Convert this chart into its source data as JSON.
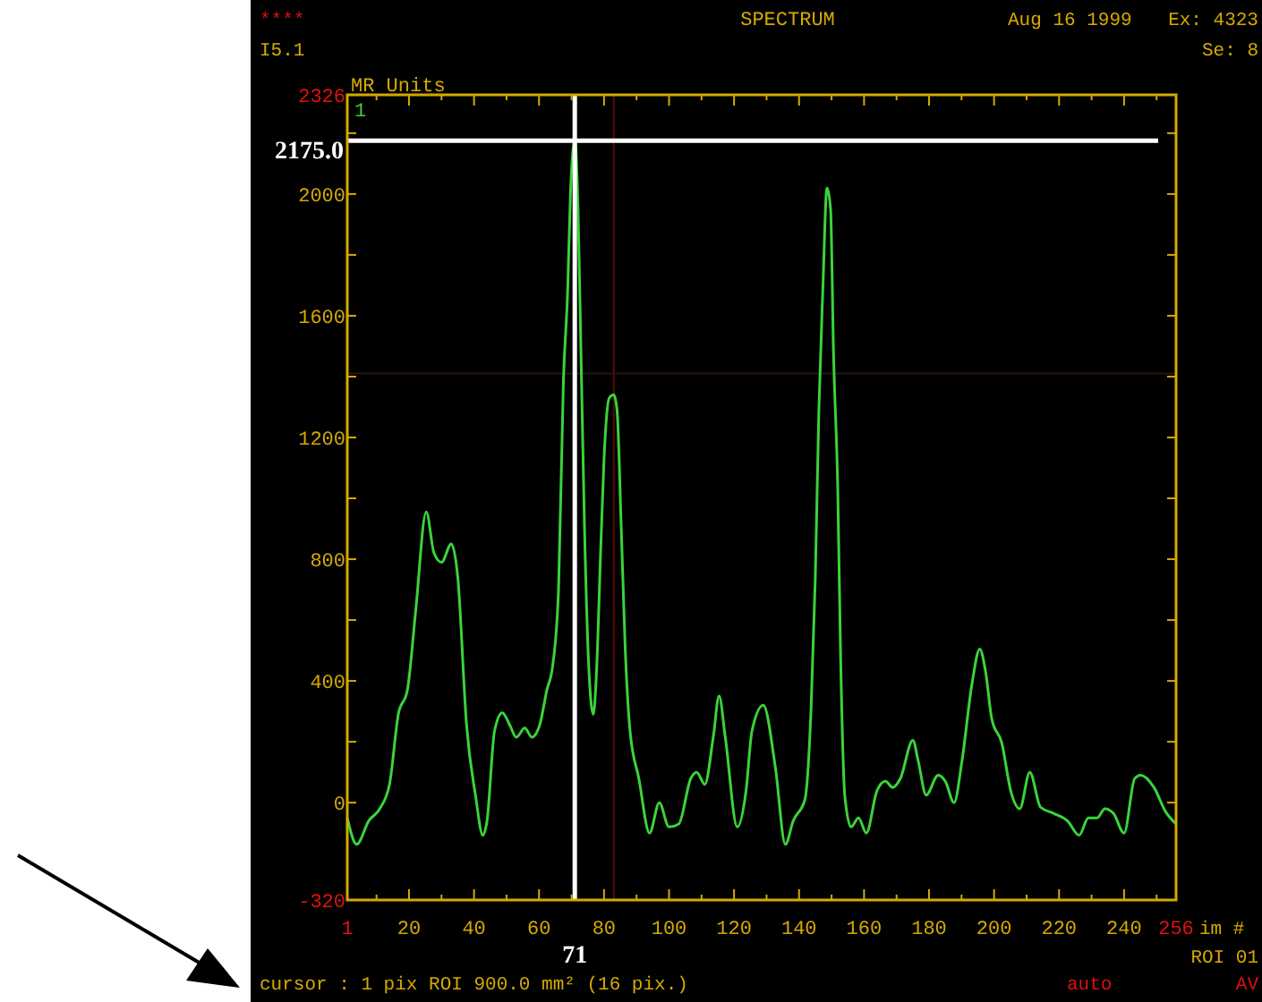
{
  "chart_data": {
    "type": "line",
    "title": "SPECTRUM",
    "ylabel": "MR Units",
    "xlabel": "im #",
    "annotations": [
      "****",
      "I5.1",
      "Aug 16 1999",
      "Ex: 4323",
      "Se: 8",
      "ROI 01",
      "cursor : 1 pix  ROI 900.0 mm² (16 pix.)",
      "auto",
      "AV"
    ],
    "xlim": [
      1,
      256
    ],
    "ylim": [
      -320,
      2326
    ],
    "xticks": [
      1,
      {
        "value": 10,
        "label": null
      },
      20,
      {
        "value": 30,
        "label": null
      },
      40,
      {
        "value": 50,
        "label": null
      },
      60,
      {
        "value": 70,
        "label": null
      },
      80,
      {
        "value": 90,
        "label": null
      },
      100,
      {
        "value": 110,
        "label": null
      },
      120,
      {
        "value": 130,
        "label": null
      },
      140,
      {
        "value": 150,
        "label": null
      },
      160,
      {
        "value": 170,
        "label": null
      },
      180,
      {
        "value": 190,
        "label": null
      },
      200,
      {
        "value": 210,
        "label": null
      },
      220,
      {
        "value": 230,
        "label": null
      },
      240,
      {
        "value": 250,
        "label": null
      },
      256
    ],
    "yticks": [
      -320,
      0,
      {
        "value": 200,
        "label": null
      },
      400,
      {
        "value": 600,
        "label": null
      },
      800,
      {
        "value": 1000,
        "label": null
      },
      1200,
      {
        "value": 1400,
        "label": null
      },
      1600,
      {
        "value": 1800,
        "label": null
      },
      2000,
      {
        "value": 2200,
        "label": null
      },
      2326
    ],
    "grid": false,
    "marker": "none",
    "line_style": "solid",
    "ref_lines": [
      {
        "axis": "x",
        "value": 83,
        "color": "#5a0a0a"
      },
      {
        "axis": "y",
        "value": 1410,
        "color": "#2a1414"
      },
      {
        "axis": "x",
        "value": 71,
        "label": "71",
        "color": "#ffffff"
      },
      {
        "axis": "y",
        "value": 2175,
        "label": "2175.0",
        "color": "#ffffff"
      }
    ],
    "series": [
      {
        "name": "1",
        "color": "#3ad43a",
        "x": [
          1,
          3.9,
          7.6,
          11,
          14,
          16.7,
          19.5,
          22,
          25.3,
          27.7,
          30,
          33,
          35,
          37.7,
          40.5,
          42.7,
          44,
          46.3,
          48.7,
          51,
          53,
          55.6,
          57.8,
          60.2,
          62.4,
          64.2,
          66,
          67.5,
          68.8,
          69.7,
          71,
          72,
          73,
          74,
          75.2,
          76.7,
          77.6,
          79,
          80,
          81.6,
          83,
          84,
          85.3,
          86.5,
          88,
          90.7,
          94,
          97,
          100,
          103,
          106.7,
          108.5,
          111,
          113.6,
          115.4,
          117.3,
          121,
          123.7,
          125.5,
          129,
          132.7,
          135.8,
          138.2,
          141.8,
          143.7,
          145,
          146.1,
          147.3,
          148.6,
          149.7,
          150.6,
          151.9,
          152.8,
          154.1,
          156,
          158.3,
          160.7,
          164,
          166.6,
          168.8,
          171.2,
          175,
          176.7,
          179.1,
          182.8,
          185,
          187.7,
          190.1,
          193.2,
          195.6,
          197.4,
          199.3,
          202.4,
          205.1,
          207.9,
          211,
          214.3,
          218.3,
          222.6,
          226.2,
          229,
          231.7,
          234.1,
          236.7,
          240,
          243.3,
          245.1,
          249.2,
          252.8,
          256
        ],
        "values": [
          -50,
          -137,
          -60,
          -20,
          60,
          290,
          370,
          625,
          955,
          820,
          790,
          850,
          740,
          255,
          20,
          -107,
          -60,
          235,
          295,
          255,
          215,
          245,
          215,
          255,
          370,
          450,
          700,
          1385,
          1680,
          2010,
          2175,
          1950,
          1425,
          900,
          470,
          290,
          410,
          840,
          1130,
          1330,
          1340,
          1290,
          900,
          510,
          235,
          80,
          -100,
          0,
          -80,
          -70,
          80,
          100,
          60,
          215,
          350,
          215,
          -80,
          40,
          235,
          320,
          117,
          -137,
          -60,
          10,
          310,
          740,
          1290,
          1680,
          2020,
          1950,
          1480,
          1035,
          470,
          20,
          -80,
          -50,
          -100,
          40,
          70,
          50,
          80,
          205,
          135,
          25,
          90,
          70,
          0,
          135,
          390,
          505,
          430,
          275,
          195,
          40,
          -20,
          100,
          -15,
          -35,
          -60,
          -107,
          -50,
          -50,
          -20,
          -35,
          -100,
          80,
          90,
          50,
          -30,
          -70
        ]
      }
    ]
  }
}
